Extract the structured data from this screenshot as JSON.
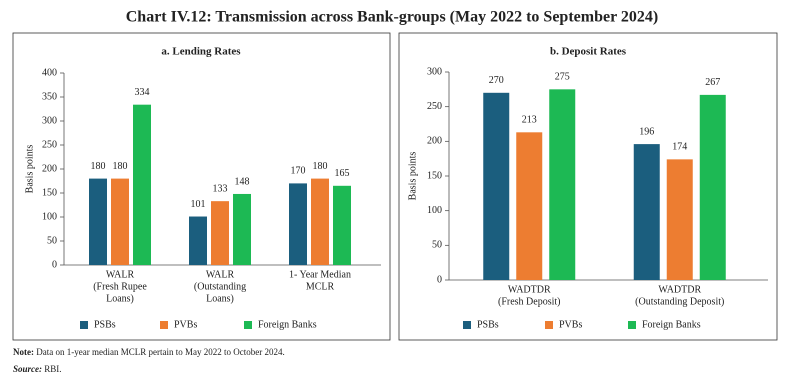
{
  "title": "Chart IV.12: Transmission across Bank-groups (May 2022 to September 2024)",
  "note": {
    "label": "Note:",
    "text": "Data on 1-year median MCLR pertain to May 2022 to October 2024."
  },
  "source": {
    "label": "Source:",
    "text": "RBI."
  },
  "chart_data": [
    {
      "type": "bar",
      "title": "a. Lending Rates",
      "y_label": "Basis points",
      "categories": [
        [
          "WALR",
          "(Fresh Rupee",
          "Loans)"
        ],
        [
          "WALR",
          "(Outstanding",
          "Loans)"
        ],
        [
          "1- Year Median",
          "MCLR"
        ]
      ],
      "series": [
        {
          "name": "PSBs",
          "color": "#1b5e7e",
          "values": [
            180,
            101,
            170
          ]
        },
        {
          "name": "PVBs",
          "color": "#ed7d31",
          "values": [
            180,
            133,
            180
          ]
        },
        {
          "name": "Foreign Banks",
          "color": "#1db954",
          "values": [
            334,
            148,
            165
          ]
        }
      ],
      "ylim": [
        0,
        400
      ],
      "yticks": [
        0,
        50,
        100,
        150,
        200,
        250,
        300,
        350,
        400
      ]
    },
    {
      "type": "bar",
      "title": "b. Deposit Rates",
      "y_label": "Basis points",
      "categories": [
        [
          "WADTDR",
          "(Fresh Deposit)"
        ],
        [
          "WADTDR",
          "(Outstanding Deposit)"
        ]
      ],
      "series": [
        {
          "name": "PSBs",
          "color": "#1b5e7e",
          "values": [
            270,
            196
          ]
        },
        {
          "name": "PVBs",
          "color": "#ed7d31",
          "values": [
            213,
            174
          ]
        },
        {
          "name": "Foreign Banks",
          "color": "#1db954",
          "values": [
            275,
            267
          ]
        }
      ],
      "ylim": [
        0,
        300
      ],
      "yticks": [
        0,
        50,
        100,
        150,
        200,
        250,
        300
      ]
    }
  ]
}
